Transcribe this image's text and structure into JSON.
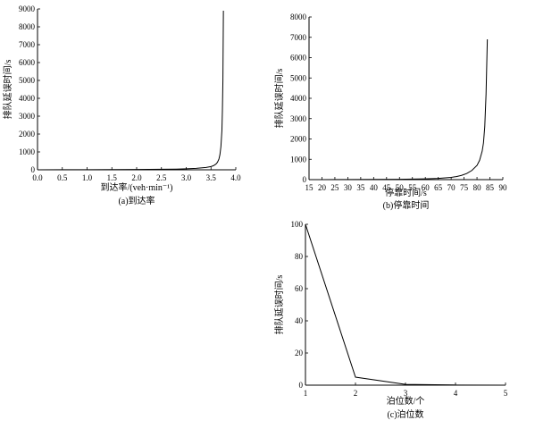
{
  "chart_data": [
    {
      "id": "a",
      "type": "line",
      "caption": "(a)到达率",
      "xlabel": "到达率/(veh·min⁻¹)",
      "ylabel": "排队延误时间/s",
      "xlim": [
        0,
        4
      ],
      "ylim": [
        0,
        9000
      ],
      "xticks": [
        0.0,
        0.5,
        1.0,
        1.5,
        2.0,
        2.5,
        3.0,
        3.5,
        4.0
      ],
      "xtick_labels": [
        "0.0",
        "0.5",
        "1.0",
        "1.5",
        "2.0",
        "2.5",
        "3.0",
        "3.5",
        "4.0"
      ],
      "yticks": [
        0,
        1000,
        2000,
        3000,
        4000,
        5000,
        6000,
        7000,
        8000,
        9000
      ],
      "ytick_labels": [
        "0",
        "1000",
        "2000",
        "3000",
        "4000",
        "5000",
        "6000",
        "7000",
        "8000",
        "9000"
      ],
      "grid": false,
      "series": [
        {
          "x": [
            0.0,
            0.5,
            1.0,
            1.5,
            2.0,
            2.5,
            2.8,
            3.0,
            3.2,
            3.4,
            3.5,
            3.55,
            3.6,
            3.63,
            3.66,
            3.68,
            3.7,
            3.72,
            3.73,
            3.74,
            3.75
          ],
          "y": [
            2,
            4,
            8,
            12,
            18,
            30,
            40,
            55,
            80,
            130,
            180,
            230,
            320,
            420,
            600,
            850,
            1300,
            2200,
            3300,
            5000,
            8900
          ]
        }
      ]
    },
    {
      "id": "b",
      "type": "line",
      "caption": "(b)停靠时间",
      "xlabel": "停靠时间/s",
      "ylabel": "排队延误时间/s",
      "xlim": [
        15,
        90
      ],
      "ylim": [
        0,
        8000
      ],
      "xticks": [
        15,
        20,
        25,
        30,
        35,
        40,
        45,
        50,
        55,
        60,
        65,
        70,
        75,
        80,
        85,
        90
      ],
      "xtick_labels": [
        "15",
        "20",
        "25",
        "30",
        "35",
        "40",
        "45",
        "50",
        "55",
        "60",
        "65",
        "70",
        "75",
        "80",
        "85",
        "90"
      ],
      "yticks": [
        0,
        1000,
        2000,
        3000,
        4000,
        5000,
        6000,
        7000,
        8000
      ],
      "ytick_labels": [
        "0",
        "1000",
        "2000",
        "3000",
        "4000",
        "5000",
        "6000",
        "7000",
        "8000"
      ],
      "grid": false,
      "series": [
        {
          "x": [
            15,
            20,
            30,
            40,
            50,
            55,
            60,
            65,
            70,
            72,
            74,
            76,
            78,
            80,
            81,
            82,
            82.5,
            83,
            83.5,
            84
          ],
          "y": [
            0,
            2,
            5,
            10,
            18,
            25,
            40,
            60,
            110,
            150,
            210,
            300,
            450,
            700,
            950,
            1400,
            1800,
            2600,
            4200,
            6900
          ]
        }
      ]
    },
    {
      "id": "c",
      "type": "line",
      "caption": "(c)泊位数",
      "xlabel": "泊位数/个",
      "ylabel": "排队延误时间/s",
      "xlim": [
        1,
        5
      ],
      "ylim": [
        0,
        100
      ],
      "xticks": [
        1,
        2,
        3,
        4,
        5
      ],
      "xtick_labels": [
        "1",
        "2",
        "3",
        "4",
        "5"
      ],
      "yticks": [
        0,
        20,
        40,
        60,
        80,
        100
      ],
      "ytick_labels": [
        "0",
        "20",
        "40",
        "60",
        "80",
        "100"
      ],
      "grid": false,
      "series": [
        {
          "x": [
            1,
            2,
            3,
            4,
            5
          ],
          "y": [
            100,
            5,
            0.5,
            0.1,
            0
          ]
        }
      ]
    }
  ]
}
